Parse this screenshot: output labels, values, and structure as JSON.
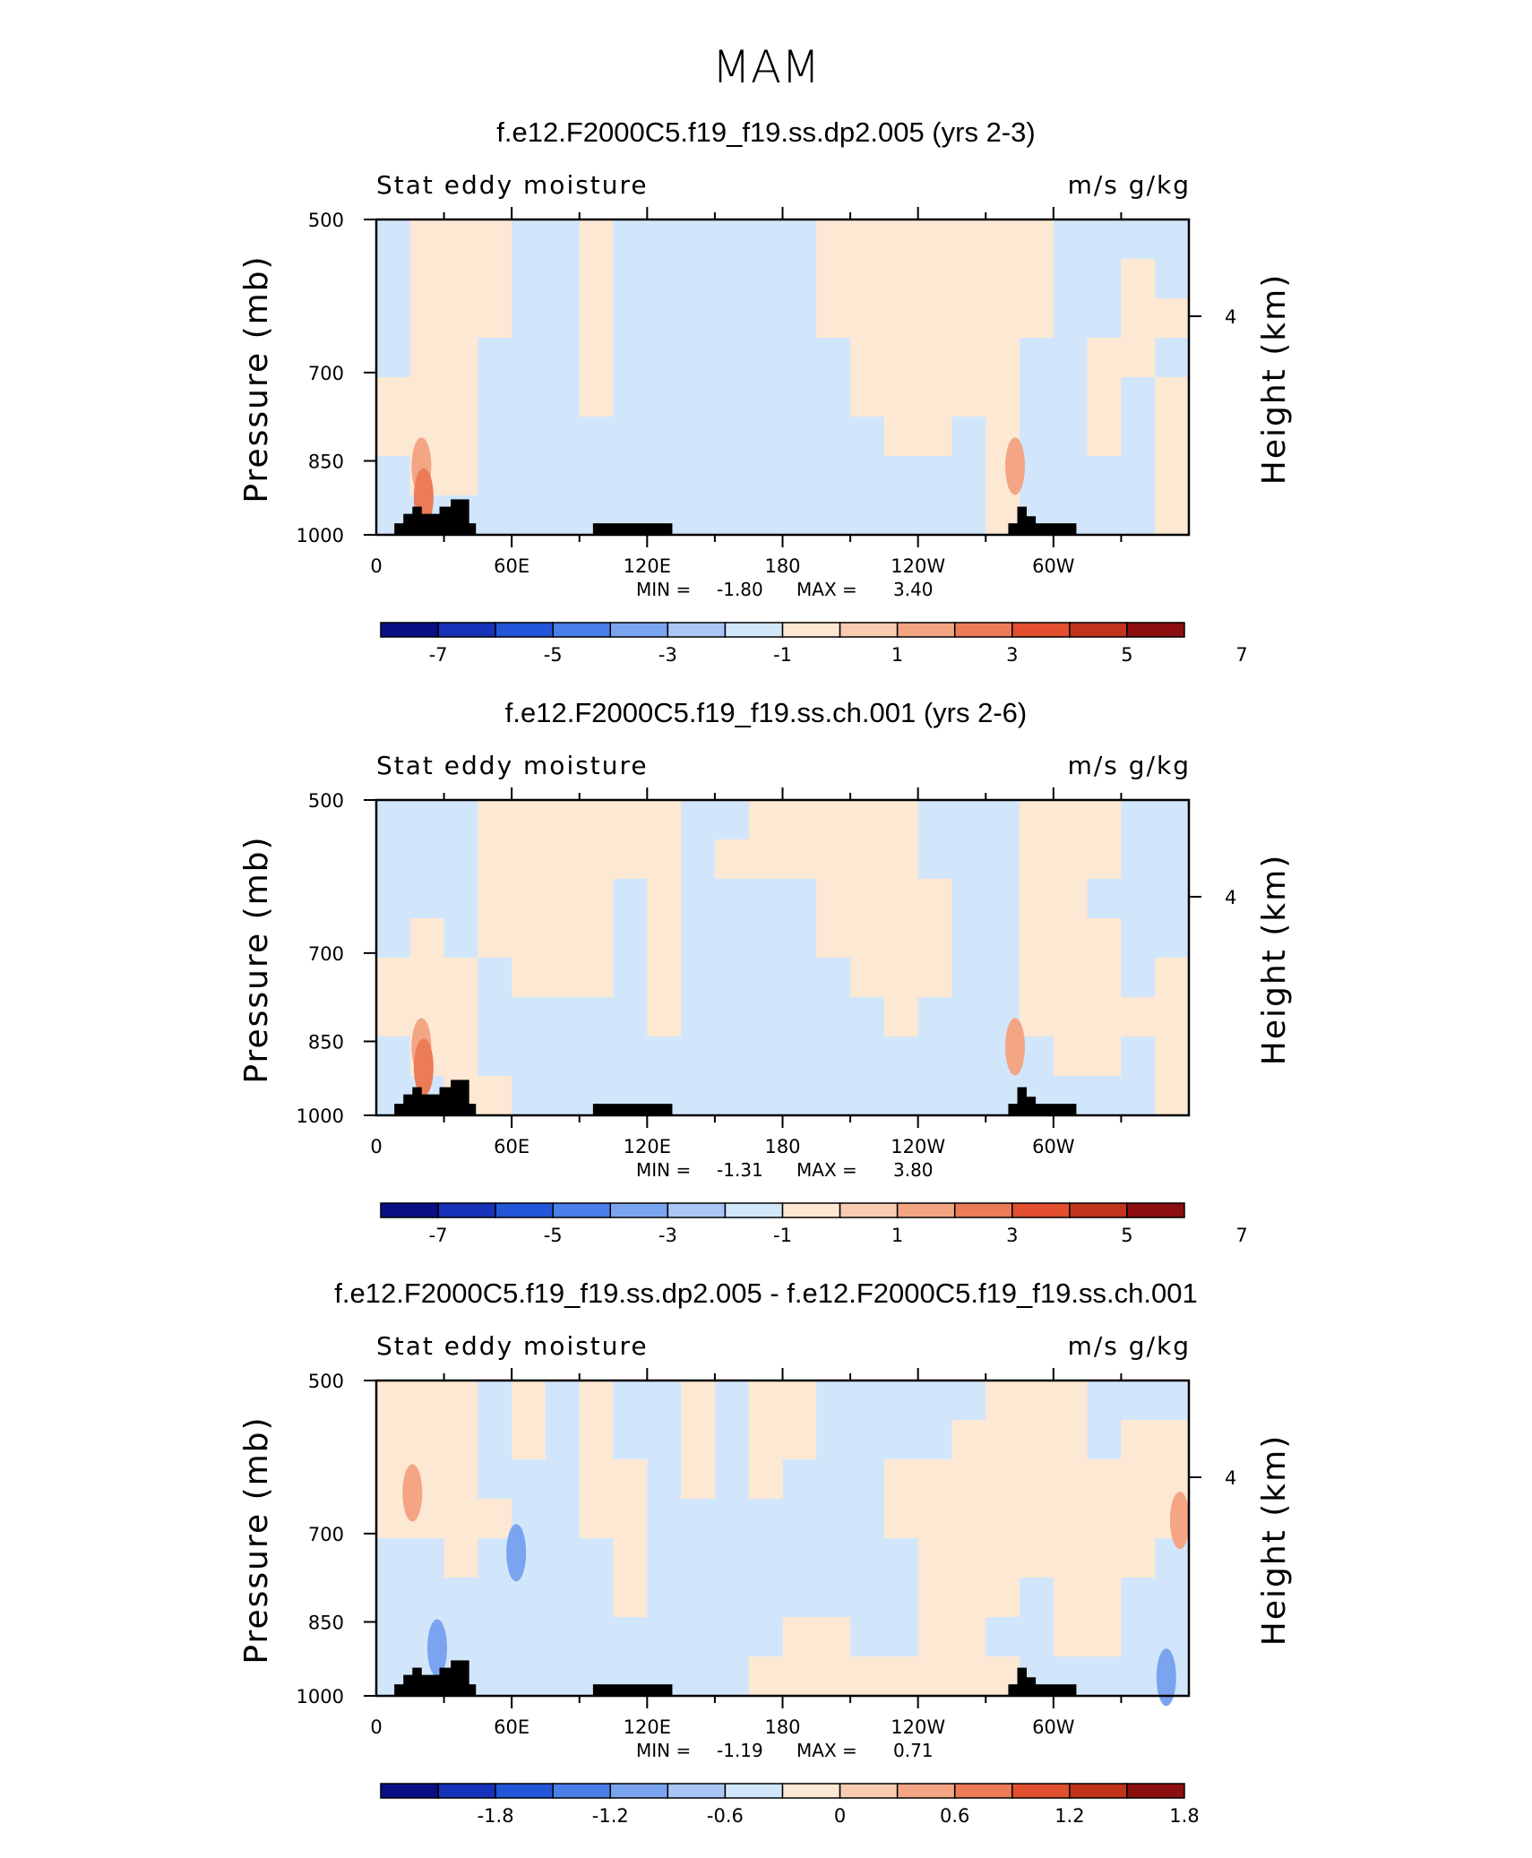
{
  "figure": {
    "title": "MAM"
  },
  "colors": {
    "neg": [
      "#0b0f85",
      "#1632b8",
      "#2356d8",
      "#4a7ee8",
      "#7aa4f0",
      "#aac6f5",
      "#d2e6fb"
    ],
    "pos": [
      "#fde8d3",
      "#f9ccb2",
      "#f3a584",
      "#ec7b58",
      "#e14f30",
      "#c2331c",
      "#8c0e0e"
    ],
    "land": "#000000"
  },
  "chart_data": [
    {
      "type": "heatmap",
      "title": "f.e12.F2000C5.f19_f19.ss.dp2.005 (yrs 2-3)",
      "left_label": "Stat eddy moisture",
      "right_label": "m/s g/kg",
      "ylabel": "Pressure (mb)",
      "y2label": "Height (km)",
      "y2_ticks": [
        "4"
      ],
      "y_ticks": [
        "500",
        "700",
        "850",
        "1000"
      ],
      "x_ticks": [
        "0",
        "60E",
        "120E",
        "180",
        "120W",
        "60W"
      ],
      "stats": {
        "min_label": "MIN =",
        "min": "-1.80",
        "max_label": "MAX =",
        "max": "3.40"
      },
      "colorbar_labels": [
        "-7",
        "-5",
        "-3",
        "-1",
        "1",
        "3",
        "5",
        "7"
      ],
      "sign_pattern": [
        [
          "-",
          "+",
          "+",
          "+",
          "-",
          "-",
          "+",
          "-",
          "-",
          "-",
          "-",
          "-",
          "-",
          "+",
          "+",
          "+",
          "+",
          "+",
          "+",
          "+",
          "-",
          "-",
          "-",
          "-"
        ],
        [
          "-",
          "+",
          "+",
          "+",
          "-",
          "-",
          "+",
          "-",
          "-",
          "-",
          "-",
          "-",
          "-",
          "+",
          "+",
          "+",
          "+",
          "+",
          "+",
          "+",
          "-",
          "-",
          "+",
          "-"
        ],
        [
          "-",
          "+",
          "+",
          "+",
          "-",
          "-",
          "+",
          "-",
          "-",
          "-",
          "-",
          "-",
          "-",
          "+",
          "+",
          "+",
          "+",
          "+",
          "+",
          "+",
          "-",
          "-",
          "+",
          "+"
        ],
        [
          "-",
          "+",
          "+",
          "-",
          "-",
          "-",
          "+",
          "-",
          "-",
          "-",
          "-",
          "-",
          "-",
          "-",
          "+",
          "+",
          "+",
          "+",
          "+",
          "-",
          "-",
          "+",
          "+",
          "-"
        ],
        [
          "+",
          "+",
          "+",
          "-",
          "-",
          "-",
          "+",
          "-",
          "-",
          "-",
          "-",
          "-",
          "-",
          "-",
          "+",
          "+",
          "+",
          "+",
          "+",
          "-",
          "-",
          "+",
          "-",
          "+"
        ],
        [
          "+",
          "+",
          "+",
          "-",
          "-",
          "-",
          "-",
          "-",
          "-",
          "-",
          "-",
          "-",
          "-",
          "-",
          "-",
          "+",
          "+",
          "-",
          "+",
          "-",
          "-",
          "+",
          "-",
          "+"
        ],
        [
          "-",
          "+",
          "+",
          "-",
          "-",
          "-",
          "-",
          "-",
          "-",
          "-",
          "-",
          "-",
          "-",
          "-",
          "-",
          "-",
          "-",
          "-",
          "+",
          "-",
          "-",
          "-",
          "-",
          "+"
        ],
        [
          "-",
          "-",
          "-",
          "-",
          "-",
          "-",
          "-",
          "-",
          "-",
          "-",
          "-",
          "-",
          "-",
          "-",
          "-",
          "-",
          "-",
          "-",
          "+",
          "-",
          "-",
          "-",
          "-",
          "+"
        ]
      ],
      "hot_spots": [
        {
          "lon": 20,
          "p": 860,
          "level": 2
        },
        {
          "lon": 21,
          "p": 920,
          "level": 3
        },
        {
          "lon": 283,
          "p": 860,
          "level": 2
        }
      ]
    },
    {
      "type": "heatmap",
      "title": "f.e12.F2000C5.f19_f19.ss.ch.001 (yrs 2-6)",
      "left_label": "Stat eddy moisture",
      "right_label": "m/s g/kg",
      "ylabel": "Pressure (mb)",
      "y2label": "Height (km)",
      "y2_ticks": [
        "4"
      ],
      "y_ticks": [
        "500",
        "700",
        "850",
        "1000"
      ],
      "x_ticks": [
        "0",
        "60E",
        "120E",
        "180",
        "120W",
        "60W"
      ],
      "stats": {
        "min_label": "MIN =",
        "min": "-1.31",
        "max_label": "MAX =",
        "max": "3.80"
      },
      "colorbar_labels": [
        "-7",
        "-5",
        "-3",
        "-1",
        "1",
        "3",
        "5",
        "7"
      ],
      "sign_pattern": [
        [
          "-",
          "-",
          "-",
          "+",
          "+",
          "+",
          "+",
          "+",
          "+",
          "-",
          "-",
          "+",
          "+",
          "+",
          "+",
          "+",
          "-",
          "-",
          "-",
          "+",
          "+",
          "+",
          "-",
          "-"
        ],
        [
          "-",
          "-",
          "-",
          "+",
          "+",
          "+",
          "+",
          "+",
          "+",
          "-",
          "+",
          "+",
          "+",
          "+",
          "+",
          "+",
          "-",
          "-",
          "-",
          "+",
          "+",
          "+",
          "-",
          "-"
        ],
        [
          "-",
          "-",
          "-",
          "+",
          "+",
          "+",
          "+",
          "-",
          "+",
          "-",
          "-",
          "-",
          "-",
          "+",
          "+",
          "+",
          "+",
          "-",
          "-",
          "+",
          "+",
          "-",
          "-",
          "-"
        ],
        [
          "-",
          "+",
          "-",
          "+",
          "+",
          "+",
          "+",
          "-",
          "+",
          "-",
          "-",
          "-",
          "-",
          "+",
          "+",
          "+",
          "+",
          "-",
          "-",
          "+",
          "+",
          "+",
          "-",
          "-"
        ],
        [
          "+",
          "+",
          "+",
          "-",
          "+",
          "+",
          "+",
          "-",
          "+",
          "-",
          "-",
          "-",
          "-",
          "-",
          "+",
          "+",
          "+",
          "-",
          "-",
          "+",
          "+",
          "+",
          "-",
          "+"
        ],
        [
          "+",
          "+",
          "+",
          "-",
          "-",
          "-",
          "-",
          "-",
          "+",
          "-",
          "-",
          "-",
          "-",
          "-",
          "-",
          "+",
          "-",
          "-",
          "-",
          "+",
          "+",
          "+",
          "+",
          "+"
        ],
        [
          "-",
          "+",
          "+",
          "-",
          "-",
          "-",
          "-",
          "-",
          "-",
          "-",
          "-",
          "-",
          "-",
          "-",
          "-",
          "-",
          "-",
          "-",
          "-",
          "-",
          "+",
          "+",
          "-",
          "+"
        ],
        [
          "-",
          "-",
          "+",
          "+",
          "-",
          "-",
          "-",
          "-",
          "-",
          "-",
          "-",
          "-",
          "-",
          "-",
          "-",
          "-",
          "-",
          "-",
          "-",
          "-",
          "-",
          "-",
          "-",
          "+"
        ]
      ],
      "hot_spots": [
        {
          "lon": 20,
          "p": 860,
          "level": 2
        },
        {
          "lon": 21,
          "p": 900,
          "level": 3
        },
        {
          "lon": 283,
          "p": 860,
          "level": 2
        }
      ]
    },
    {
      "type": "heatmap",
      "title": "f.e12.F2000C5.f19_f19.ss.dp2.005 - f.e12.F2000C5.f19_f19.ss.ch.001",
      "left_label": "Stat eddy moisture",
      "right_label": "m/s g/kg",
      "ylabel": "Pressure (mb)",
      "y2label": "Height (km)",
      "y2_ticks": [
        "4"
      ],
      "y_ticks": [
        "500",
        "700",
        "850",
        "1000"
      ],
      "x_ticks": [
        "0",
        "60E",
        "120E",
        "180",
        "120W",
        "60W"
      ],
      "stats": {
        "min_label": "MIN =",
        "min": "-1.19",
        "max_label": "MAX =",
        "max": "0.71"
      },
      "colorbar_labels": [
        "-1.8",
        "-1.2",
        "-0.6",
        "0",
        "0.6",
        "1.2",
        "1.8"
      ],
      "sign_pattern": [
        [
          "+",
          "+",
          "+",
          "-",
          "+",
          "-",
          "+",
          "-",
          "-",
          "+",
          "-",
          "+",
          "+",
          "-",
          "-",
          "-",
          "-",
          "-",
          "+",
          "+",
          "+",
          "-",
          "-",
          "-"
        ],
        [
          "+",
          "+",
          "+",
          "-",
          "+",
          "-",
          "+",
          "-",
          "-",
          "+",
          "-",
          "+",
          "+",
          "-",
          "-",
          "-",
          "-",
          "+",
          "+",
          "+",
          "+",
          "-",
          "+",
          "+"
        ],
        [
          "+",
          "+",
          "+",
          "-",
          "-",
          "-",
          "+",
          "+",
          "-",
          "+",
          "-",
          "+",
          "-",
          "-",
          "-",
          "+",
          "+",
          "+",
          "+",
          "+",
          "+",
          "+",
          "+",
          "+"
        ],
        [
          "+",
          "+",
          "+",
          "+",
          "-",
          "-",
          "+",
          "+",
          "-",
          "-",
          "-",
          "-",
          "-",
          "-",
          "-",
          "+",
          "+",
          "+",
          "+",
          "+",
          "+",
          "+",
          "+",
          "+"
        ],
        [
          "-",
          "-",
          "+",
          "-",
          "-",
          "-",
          "-",
          "+",
          "-",
          "-",
          "-",
          "-",
          "-",
          "-",
          "-",
          "-",
          "+",
          "+",
          "+",
          "+",
          "+",
          "+",
          "+",
          "-"
        ],
        [
          "-",
          "-",
          "-",
          "-",
          "-",
          "-",
          "-",
          "+",
          "-",
          "-",
          "-",
          "-",
          "-",
          "-",
          "-",
          "-",
          "+",
          "+",
          "+",
          "-",
          "+",
          "+",
          "-",
          "-"
        ],
        [
          "-",
          "-",
          "-",
          "-",
          "-",
          "-",
          "-",
          "-",
          "-",
          "-",
          "-",
          "-",
          "+",
          "+",
          "-",
          "-",
          "+",
          "+",
          "-",
          "-",
          "+",
          "+",
          "-",
          "-"
        ],
        [
          "-",
          "-",
          "-",
          "-",
          "-",
          "-",
          "-",
          "-",
          "-",
          "-",
          "-",
          "+",
          "+",
          "+",
          "+",
          "+",
          "+",
          "+",
          "+",
          "-",
          "-",
          "-",
          "-",
          "-"
        ]
      ],
      "hot_spots": [
        {
          "lon": 16,
          "p": 640,
          "level": 2
        },
        {
          "lon": 356,
          "p": 680,
          "level": 2
        },
        {
          "lon": 62,
          "p": 730,
          "level": -2
        },
        {
          "lon": 27,
          "p": 900,
          "level": -2
        },
        {
          "lon": 350,
          "p": 960,
          "level": -2
        }
      ]
    }
  ]
}
